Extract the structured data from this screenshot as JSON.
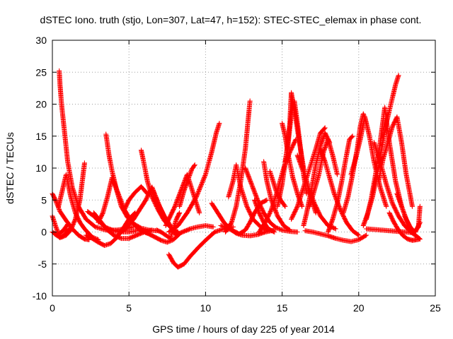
{
  "chart_data": {
    "type": "scatter",
    "title": "dSTEC Iono. truth (stjo, Lon=307, Lat=47, h=152): STEC-STEC_elemax in phase cont.",
    "xlabel": "GPS time / hours of day 225 of year 2014",
    "ylabel": "dSTEC  / TECUs",
    "xlim": [
      0,
      25
    ],
    "ylim": [
      -10,
      30
    ],
    "x_ticks": [
      "0",
      "5",
      "10",
      "15",
      "20",
      "25"
    ],
    "y_ticks": [
      "-10",
      "-5",
      "0",
      "5",
      "10",
      "15",
      "20",
      "25",
      "30"
    ],
    "grid": true,
    "legend": "none",
    "marker": "plus",
    "color": "#ff0000",
    "series": [
      {
        "x": [
          0.0,
          0.2,
          0.5,
          0.9,
          1.3,
          1.7,
          2.1,
          2.4
        ],
        "y": [
          6.0,
          5.0,
          3.2,
          1.8,
          0.5,
          -0.5,
          -1.1,
          -1.2
        ]
      },
      {
        "x": [
          0.0,
          0.3,
          0.6,
          0.9,
          1.2,
          1.5,
          1.8,
          2.1
        ],
        "y": [
          0.0,
          -0.5,
          -0.8,
          -0.5,
          0.3,
          2.0,
          5.0,
          10.8
        ]
      },
      {
        "x": [
          0.0,
          0.2,
          0.4,
          0.7,
          1.0
        ],
        "y": [
          2.5,
          1.0,
          -0.3,
          0.2,
          1.2
        ]
      },
      {
        "x": [
          0.15,
          0.5,
          0.8,
          1.1
        ],
        "y": [
          -0.3,
          -0.9,
          -0.4,
          0.5
        ]
      },
      {
        "x": [
          0.4,
          0.6,
          0.9,
          1.2,
          1.5,
          1.8,
          2.1,
          2.6,
          3.0
        ],
        "y": [
          4.0,
          6.0,
          9.0,
          5.5,
          3.0,
          1.5,
          0.5,
          -0.8,
          -1.2
        ]
      },
      {
        "x": [
          0.45,
          0.5,
          0.6,
          0.8,
          1.0,
          1.3,
          1.7,
          2.2,
          2.8,
          3.5,
          4.2,
          4.8,
          5.3
        ],
        "y": [
          25.2,
          23.0,
          20.0,
          15.5,
          11.0,
          7.0,
          4.0,
          2.0,
          0.8,
          0.3,
          0.3,
          0.5,
          0.8
        ]
      },
      {
        "x": [
          2.3,
          2.7,
          3.1,
          3.5,
          4.0,
          4.5,
          5.0,
          5.5
        ],
        "y": [
          3.2,
          2.5,
          1.5,
          0.7,
          0.2,
          0.0,
          0.0,
          0.2
        ]
      },
      {
        "x": [
          2.2,
          2.6,
          3.0,
          3.4,
          3.8,
          4.2,
          4.6,
          5.0,
          5.4
        ],
        "y": [
          -0.5,
          -1.0,
          -1.6,
          -2.1,
          -1.8,
          -0.9,
          0.5,
          2.0,
          3.0
        ]
      },
      {
        "x": [
          2.7,
          3.2,
          3.6,
          4.0,
          4.5,
          5.0,
          5.5,
          6.0,
          6.5
        ],
        "y": [
          3.0,
          1.5,
          0.3,
          -0.5,
          -1.0,
          -1.0,
          -0.5,
          0.0,
          0.3
        ]
      },
      {
        "x": [
          3.5,
          3.7,
          3.9,
          4.2,
          4.5,
          4.9,
          5.3,
          5.8,
          6.3,
          6.8
        ],
        "y": [
          15.3,
          12.0,
          9.5,
          6.5,
          4.0,
          2.3,
          1.3,
          0.6,
          0.3,
          0.2
        ]
      },
      {
        "x": [
          3.0,
          3.3,
          3.6,
          3.9,
          4.3,
          4.7,
          5.2,
          5.7,
          6.2
        ],
        "y": [
          1.5,
          3.0,
          5.5,
          8.5,
          6.0,
          3.5,
          1.5,
          0.3,
          -0.2
        ]
      },
      {
        "x": [
          4.5,
          4.9,
          5.3,
          5.7,
          6.1,
          6.5,
          7.0,
          7.5
        ],
        "y": [
          0.0,
          0.8,
          2.0,
          3.5,
          5.0,
          7.0,
          4.0,
          1.5
        ]
      },
      {
        "x": [
          4.7,
          5.0,
          5.4,
          5.8,
          6.2
        ],
        "y": [
          3.5,
          5.0,
          6.2,
          7.1,
          6.0
        ]
      },
      {
        "x": [
          5.8,
          6.0,
          6.2,
          6.5,
          6.9,
          7.3,
          7.8,
          8.2
        ],
        "y": [
          12.8,
          10.5,
          8.0,
          5.5,
          3.5,
          1.8,
          0.5,
          0.0
        ]
      },
      {
        "x": [
          5.5,
          5.9,
          6.3,
          6.7,
          7.1,
          7.5,
          7.9,
          8.3
        ],
        "y": [
          0.5,
          0.2,
          -0.3,
          -0.8,
          -1.3,
          -1.6,
          -1.2,
          -0.3
        ]
      },
      {
        "x": [
          6.5,
          6.9,
          7.3,
          7.7,
          8.0
        ],
        "y": [
          7.0,
          4.5,
          2.5,
          1.0,
          -0.2
        ]
      },
      {
        "x": [
          6.8,
          7.1,
          7.4,
          7.7,
          7.9,
          8.1,
          8.3
        ],
        "y": [
          0.3,
          0.0,
          -0.5,
          -1.0,
          0.5,
          2.0,
          3.0
        ]
      },
      {
        "x": [
          7.6,
          7.9,
          8.2,
          8.6,
          9.0,
          9.5,
          10.0,
          10.6,
          11.2,
          11.8
        ],
        "y": [
          -3.5,
          -4.8,
          -5.5,
          -5.0,
          -3.8,
          -2.5,
          -1.3,
          0.0,
          0.5,
          0.8
        ]
      },
      {
        "x": [
          7.4,
          7.7,
          8.0,
          8.4,
          8.8,
          9.2,
          9.6
        ],
        "y": [
          1.0,
          2.5,
          4.0,
          6.5,
          9.0,
          6.0,
          3.0
        ]
      },
      {
        "x": [
          8.3,
          8.6,
          8.9,
          9.1,
          9.3
        ],
        "y": [
          4.0,
          6.5,
          8.5,
          9.8,
          10.5
        ]
      },
      {
        "x": [
          7.6,
          8.2,
          8.8,
          9.4,
          10.0,
          10.4,
          10.7,
          10.9
        ],
        "y": [
          0.0,
          1.0,
          3.0,
          5.5,
          9.0,
          12.5,
          15.5,
          17.0
        ]
      },
      {
        "x": [
          8.0,
          8.5,
          9.0,
          9.5,
          10.0,
          10.5
        ],
        "y": [
          -0.5,
          0.0,
          0.5,
          0.8,
          1.0,
          0.8
        ]
      },
      {
        "x": [
          10.4,
          10.8,
          11.2,
          11.6,
          12.0,
          12.4,
          12.9,
          13.4,
          13.9,
          14.5
        ],
        "y": [
          4.5,
          3.0,
          1.5,
          0.5,
          -0.2,
          -0.5,
          -0.6,
          -0.4,
          0.0,
          0.3
        ]
      },
      {
        "x": [
          11.0,
          11.4,
          11.8,
          12.2,
          12.6,
          12.9,
          13.2,
          13.6,
          14.0
        ],
        "y": [
          1.0,
          0.6,
          0.2,
          -0.3,
          0.3,
          1.5,
          3.0,
          4.5,
          5.0
        ]
      },
      {
        "x": [
          11.5,
          11.8,
          12.0,
          12.3,
          12.7,
          13.1,
          13.6,
          14.1
        ],
        "y": [
          5.5,
          8.0,
          10.5,
          7.0,
          4.0,
          2.0,
          0.8,
          0.2
        ]
      },
      {
        "x": [
          11.3,
          11.7,
          12.0,
          12.3,
          12.6,
          12.8,
          12.9
        ],
        "y": [
          0.0,
          1.5,
          4.0,
          8.0,
          13.0,
          18.0,
          20.5
        ]
      },
      {
        "x": [
          12.6,
          13.0,
          13.4,
          13.8,
          14.2,
          14.6,
          15.0,
          15.5,
          16.0
        ],
        "y": [
          10.0,
          7.5,
          5.0,
          3.0,
          1.5,
          0.7,
          0.3,
          0.1,
          0.0
        ]
      },
      {
        "x": [
          13.2,
          13.5,
          13.8,
          14.1,
          14.5
        ],
        "y": [
          5.0,
          3.0,
          1.5,
          0.5,
          0.0
        ]
      },
      {
        "x": [
          13.5,
          13.9,
          14.3,
          14.7,
          15.1,
          15.5,
          15.9
        ],
        "y": [
          0.0,
          1.5,
          3.5,
          6.5,
          10.0,
          12.5,
          14.5
        ]
      },
      {
        "x": [
          13.8,
          14.0,
          14.3,
          14.7,
          15.1,
          15.5
        ],
        "y": [
          11.0,
          8.0,
          5.0,
          2.5,
          1.0,
          0.3
        ]
      },
      {
        "x": [
          14.2,
          14.4,
          14.6,
          14.9,
          15.2
        ],
        "y": [
          9.5,
          8.0,
          6.5,
          5.0,
          4.0
        ]
      },
      {
        "x": [
          14.7,
          15.0,
          15.3,
          15.5,
          15.6,
          15.8,
          16.1,
          16.4,
          16.8,
          17.2
        ],
        "y": [
          4.0,
          7.5,
          12.5,
          17.0,
          21.8,
          19.0,
          14.5,
          10.0,
          6.0,
          3.0
        ]
      },
      {
        "x": [
          15.2,
          15.4,
          15.6,
          15.8,
          16.0,
          16.2,
          16.4,
          16.6
        ],
        "y": [
          11.0,
          14.0,
          18.5,
          20.5,
          17.0,
          13.0,
          9.0,
          6.0
        ]
      },
      {
        "x": [
          15.0,
          15.2,
          15.4,
          15.7,
          16.0,
          16.3
        ],
        "y": [
          17.0,
          15.0,
          12.0,
          8.5,
          6.0,
          4.0
        ]
      },
      {
        "x": [
          15.6,
          16.0,
          16.4,
          16.8,
          17.2,
          17.5,
          17.8
        ],
        "y": [
          2.0,
          4.0,
          7.0,
          10.0,
          13.0,
          15.5,
          16.3
        ]
      },
      {
        "x": [
          16.0,
          16.3,
          16.7,
          17.1,
          17.5,
          18.0,
          18.5
        ],
        "y": [
          12.0,
          10.0,
          7.0,
          4.5,
          2.5,
          1.0,
          0.5
        ]
      },
      {
        "x": [
          16.4,
          16.6,
          16.9,
          17.2,
          17.5,
          17.8,
          18.1
        ],
        "y": [
          1.0,
          3.0,
          6.5,
          10.5,
          13.5,
          15.5,
          14.0
        ]
      },
      {
        "x": [
          16.8,
          17.1,
          17.4,
          17.7,
          18.0,
          18.3,
          18.6
        ],
        "y": [
          4.0,
          6.5,
          9.0,
          12.5,
          14.5,
          12.0,
          9.0
        ]
      },
      {
        "x": [
          17.5,
          17.8,
          18.1,
          18.4,
          18.8,
          19.2,
          19.6,
          20.0
        ],
        "y": [
          13.0,
          11.0,
          8.5,
          6.0,
          3.5,
          1.5,
          0.2,
          -0.5
        ]
      },
      {
        "x": [
          16.5,
          17.0,
          17.5,
          18.0,
          18.5,
          19.0,
          19.5,
          20.0,
          20.5
        ],
        "y": [
          0.2,
          0.0,
          -0.3,
          -0.6,
          -1.0,
          -1.3,
          -1.5,
          -1.2,
          -0.5
        ]
      },
      {
        "x": [
          18.0,
          18.3,
          18.6,
          18.9,
          19.2,
          19.4,
          19.6
        ],
        "y": [
          0.0,
          2.0,
          4.5,
          8.0,
          12.0,
          14.5,
          15.0
        ]
      },
      {
        "x": [
          19.0,
          19.3,
          19.6,
          19.9,
          20.1,
          20.3,
          20.5
        ],
        "y": [
          3.0,
          5.5,
          9.0,
          13.0,
          16.5,
          18.5,
          17.0
        ]
      },
      {
        "x": [
          19.5,
          19.8,
          20.1,
          20.4,
          20.7,
          21.0,
          21.4,
          21.8
        ],
        "y": [
          9.0,
          11.5,
          14.5,
          18.0,
          15.0,
          11.0,
          7.0,
          4.0
        ]
      },
      {
        "x": [
          20.3,
          20.6,
          20.9,
          21.2,
          21.5,
          21.8,
          22.1,
          22.4,
          22.6
        ],
        "y": [
          1.0,
          3.0,
          5.5,
          9.0,
          13.0,
          17.0,
          20.0,
          23.0,
          24.5
        ]
      },
      {
        "x": [
          20.5,
          20.8,
          21.1,
          21.4,
          21.7,
          22.0,
          22.4,
          22.8
        ],
        "y": [
          2.0,
          5.0,
          9.0,
          14.0,
          19.5,
          14.0,
          8.0,
          4.0
        ]
      },
      {
        "x": [
          21.3,
          21.6,
          21.9,
          22.2,
          22.5,
          22.8,
          23.1,
          23.5
        ],
        "y": [
          8.0,
          11.5,
          14.0,
          16.5,
          18.0,
          14.0,
          9.0,
          4.0
        ]
      },
      {
        "x": [
          21.0,
          21.4,
          21.8,
          22.2,
          22.6,
          23.0,
          23.4,
          23.8,
          24.0
        ],
        "y": [
          14.0,
          11.0,
          7.5,
          4.5,
          2.5,
          1.0,
          0.0,
          -0.7,
          -1.1
        ]
      },
      {
        "x": [
          20.5,
          21.0,
          21.5,
          22.0,
          22.5,
          23.0,
          23.5
        ],
        "y": [
          0.5,
          0.4,
          0.3,
          0.2,
          0.1,
          0.0,
          -0.1
        ]
      },
      {
        "x": [
          22.0,
          22.3,
          22.6,
          22.9,
          23.2,
          23.5,
          23.8,
          24.0
        ],
        "y": [
          3.0,
          1.5,
          0.3,
          -0.6,
          -1.1,
          -1.3,
          -1.2,
          -1.1
        ]
      },
      {
        "x": [
          22.5,
          22.8,
          23.1,
          23.4,
          23.7,
          24.0
        ],
        "y": [
          6.0,
          4.0,
          2.0,
          0.6,
          0.0,
          1.5
        ]
      },
      {
        "x": [
          23.0,
          23.3,
          23.6,
          23.9,
          24.0
        ],
        "y": [
          2.5,
          1.0,
          0.0,
          0.8,
          4.0
        ]
      }
    ]
  }
}
